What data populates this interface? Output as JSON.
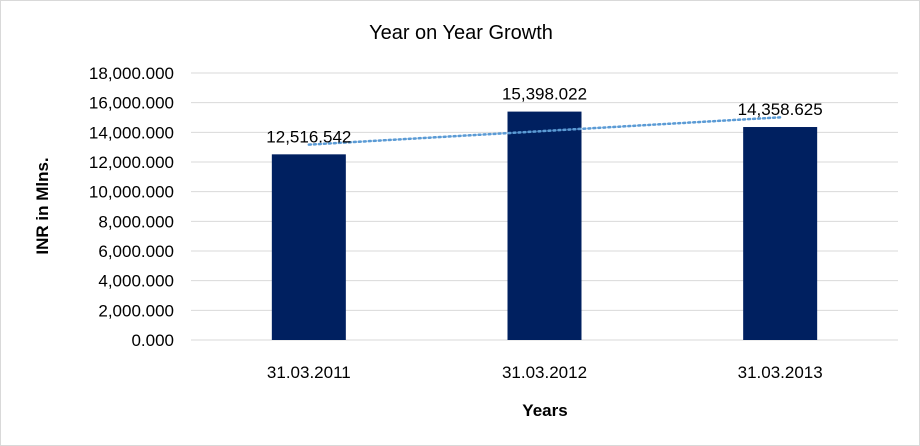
{
  "chart_data": {
    "type": "bar",
    "title": "Year on Year Growth",
    "xlabel": "Years",
    "ylabel": "INR in Mlns.",
    "categories": [
      "31.03.2011",
      "31.03.2012",
      "31.03.2013"
    ],
    "values": [
      12516.542,
      15398.022,
      14358.625
    ],
    "data_labels": [
      "12,516.542",
      "15,398.022",
      "14,358.625"
    ],
    "ylim": [
      0,
      18000
    ],
    "yticks": [
      0,
      2000,
      4000,
      6000,
      8000,
      10000,
      12000,
      14000,
      16000,
      18000
    ],
    "ytick_labels": [
      "0.000",
      "2,000.000",
      "4,000.000",
      "6,000.000",
      "8,000.000",
      "10,000.000",
      "12,000.000",
      "14,000.000",
      "16,000.000",
      "18,000.000"
    ],
    "grid": true,
    "legend": "none",
    "trendline": "linear",
    "colors": {
      "bar": "#002060",
      "trendline": "#5b9bd5",
      "grid": "#d9d9d9"
    }
  }
}
